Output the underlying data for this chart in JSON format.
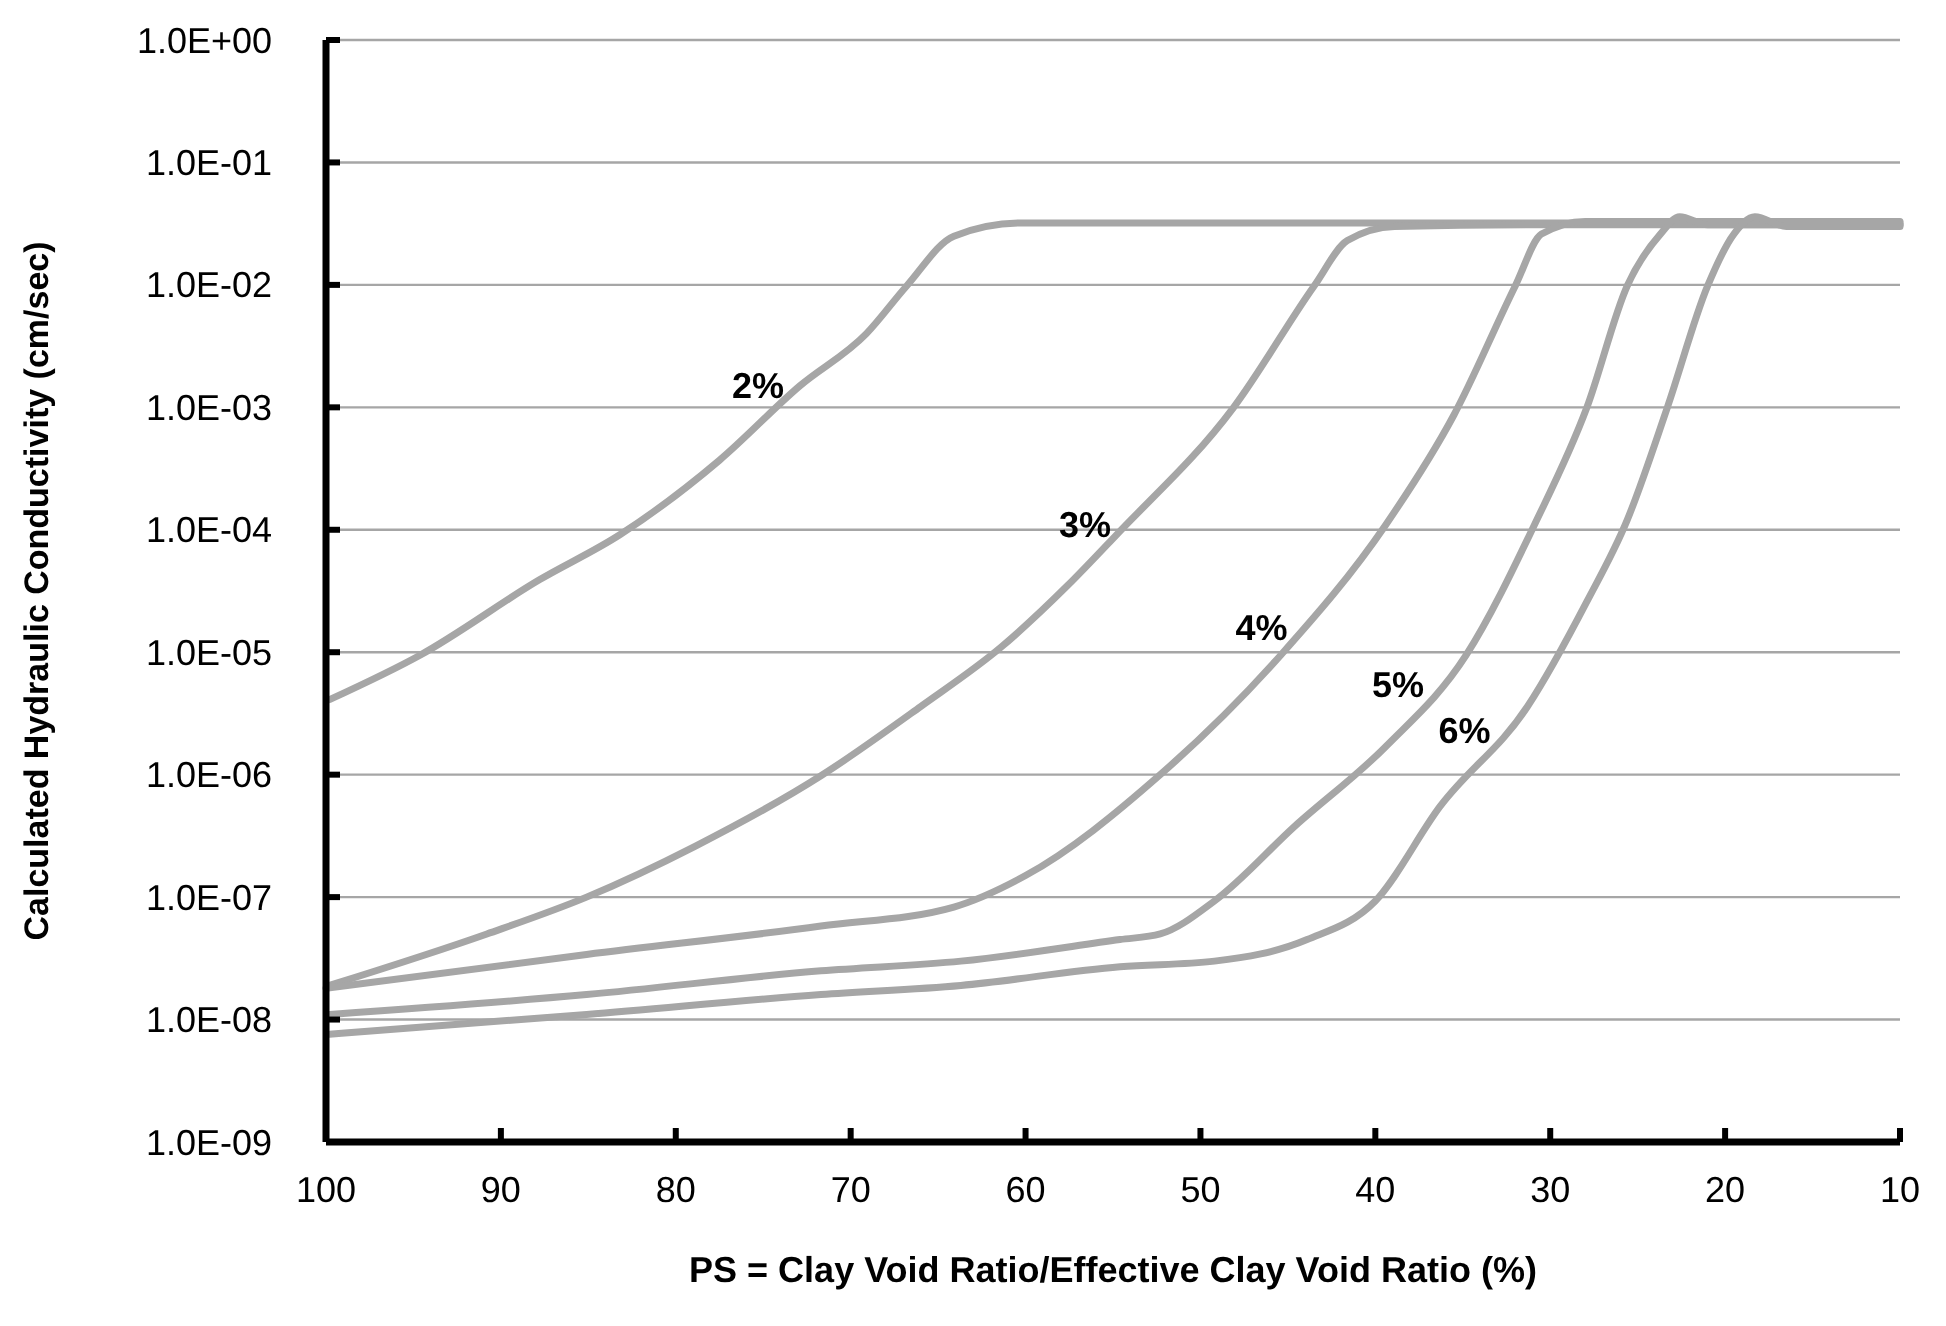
{
  "chart_data": {
    "type": "line",
    "xlabel": "PS = Clay Void Ratio/Effective Clay Void Ratio (%)",
    "ylabel": "Calculated Hydraulic Conductivity (cm/sec)",
    "log": "y",
    "grid": "y",
    "line_style": "solid",
    "marker": "none",
    "xlim": [
      100,
      10
    ],
    "xticks": [
      100,
      90,
      80,
      70,
      60,
      50,
      40,
      30,
      20,
      10
    ],
    "ylim": [
      1e-09,
      1
    ],
    "yticks": [
      {
        "value": 1,
        "label": "1.0E+00"
      },
      {
        "value": 0.1,
        "label": "1.0E-01"
      },
      {
        "value": 0.01,
        "label": "1.0E-02"
      },
      {
        "value": 0.001,
        "label": "1.0E-03"
      },
      {
        "value": 0.0001,
        "label": "1.0E-04"
      },
      {
        "value": 1e-05,
        "label": "1.0E-05"
      },
      {
        "value": 1e-06,
        "label": "1.0E-06"
      },
      {
        "value": 1e-07,
        "label": "1.0E-07"
      },
      {
        "value": 1e-08,
        "label": "1.0E-08"
      },
      {
        "value": 1e-09,
        "label": "1.0E-09"
      }
    ],
    "series": [
      {
        "color": "#a6a6a6",
        "x": [
          99.8,
          94.6,
          87.8,
          83.2,
          77.5,
          72.9,
          69.1,
          66.8,
          64.1,
          60.3,
          50,
          40,
          30,
          20,
          10
        ],
        "values": [
          4.1e-06,
          9.5e-06,
          3.9e-05,
          9.1e-05,
          0.00037,
          0.0015,
          0.004,
          0.0098,
          0.025,
          0.032,
          0.032,
          0.032,
          0.032,
          0.032,
          0.032
        ]
      },
      {
        "color": "#a6a6a6",
        "x": [
          99.8,
          90.8,
          85.1,
          78.9,
          71.7,
          66.0,
          61.4,
          57.6,
          54.8,
          48.1,
          43.5,
          41.6,
          38.9,
          30,
          20,
          10
        ],
        "values": [
          1.9e-08,
          5e-08,
          1e-07,
          2.6e-07,
          9.8e-07,
          3.6e-06,
          1.1e-05,
          3.5e-05,
          9.1e-05,
          0.001,
          0.0098,
          0.023,
          0.03,
          0.031,
          0.031,
          0.031
        ]
      },
      {
        "color": "#a6a6a6",
        "x": [
          100,
          85.1,
          71.7,
          64.1,
          60.0,
          52.3,
          45.4,
          39.4,
          35.5,
          32.0,
          30.5,
          28,
          20,
          10
        ],
        "values": [
          1.8e-08,
          3.4e-08,
          5.8e-08,
          8.3e-08,
          1.5e-07,
          1e-06,
          9.5e-06,
          0.00011,
          0.00087,
          0.0098,
          0.026,
          0.033,
          0.033,
          0.033
        ]
      },
      {
        "color": "#a6a6a6",
        "x": [
          99.8,
          85.1,
          71.7,
          63.7,
          54.6,
          52.3,
          49.2,
          44.6,
          39.4,
          34.8,
          30.9,
          27.9,
          25.6,
          23.7,
          22.6,
          21,
          15,
          10
        ],
        "values": [
          1.1e-08,
          1.6e-08,
          2.5e-08,
          3e-08,
          4.5e-08,
          5e-08,
          9.3e-08,
          3.8e-07,
          1.7e-06,
          9.5e-06,
          0.00011,
          0.001,
          0.0098,
          0.026,
          0.036,
          0.031,
          0.031,
          0.031
        ]
      },
      {
        "color": "#a6a6a6",
        "x": [
          99.8,
          85.1,
          71.7,
          63.7,
          54.6,
          49.2,
          43.9,
          40.0,
          36.3,
          31.3,
          27.9,
          25.6,
          23.3,
          21.0,
          19.5,
          18.3,
          16.5,
          10
        ],
        "values": [
          7.6e-09,
          1.1e-08,
          1.6e-08,
          1.9e-08,
          2.7e-08,
          3e-08,
          4.5e-08,
          9.3e-08,
          5.5e-07,
          3.6e-06,
          2.6e-05,
          0.00012,
          0.001,
          0.0098,
          0.026,
          0.036,
          0.03,
          0.03
        ]
      }
    ],
    "annotations": [
      {
        "text": "2%",
        "x": 72.9,
        "y": 0.0015
      },
      {
        "text": "3%",
        "x": 54.2,
        "y": 0.00011
      },
      {
        "text": "4%",
        "x": 44.1,
        "y": 1.6e-05
      },
      {
        "text": "5%",
        "x": 36.3,
        "y": 5.5e-06
      },
      {
        "text": "6%",
        "x": 32.5,
        "y": 2.3e-06
      }
    ]
  }
}
